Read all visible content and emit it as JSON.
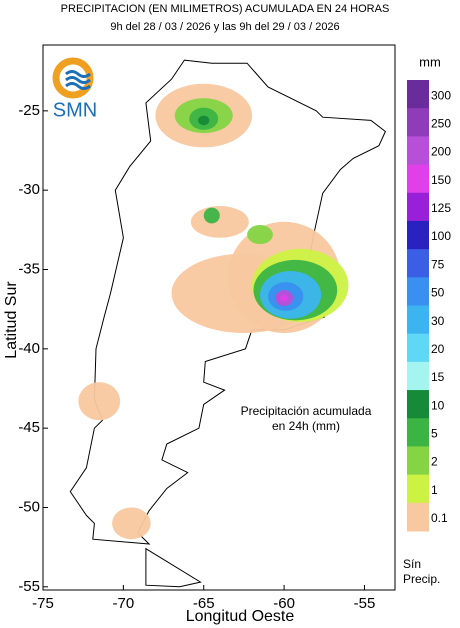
{
  "title": [
    "PRECIPITACION (EN MILIMETROS) ACUMULADA EN 24 HORAS",
    "9h del 28 / 03 / 2026  y las 9h del 29 / 03 / 2026"
  ],
  "logo": "SMN",
  "x_axis": {
    "label": "Longitud Oeste",
    "lim": [
      -75,
      -53.1
    ],
    "ticks": [
      -75,
      -70,
      -65,
      -60,
      -55
    ]
  },
  "y_axis": {
    "label": "Latitud Sur",
    "lim": [
      -55.2,
      -20.85
    ],
    "ticks": [
      -25,
      -30,
      -35,
      -40,
      -45,
      -50,
      -55
    ]
  },
  "annotation": [
    "Precipitación acumulada",
    "en 24h (mm)"
  ],
  "legend": {
    "unit": "mm",
    "levels": [
      {
        "value": 300,
        "color": "#6a2c9a"
      },
      {
        "value": 250,
        "color": "#8e3cb8"
      },
      {
        "value": 200,
        "color": "#b84fd8"
      },
      {
        "value": 150,
        "color": "#e040e8"
      },
      {
        "value": 125,
        "color": "#9820d8"
      },
      {
        "value": 100,
        "color": "#2a22c0"
      },
      {
        "value": 75,
        "color": "#3a5ee4"
      },
      {
        "value": 50,
        "color": "#3a90f0"
      },
      {
        "value": 30,
        "color": "#3cb4f0"
      },
      {
        "value": 20,
        "color": "#5ed8f4"
      },
      {
        "value": 15,
        "color": "#a4f4f0"
      },
      {
        "value": 10,
        "color": "#168a38"
      },
      {
        "value": 5,
        "color": "#3cb444"
      },
      {
        "value": 2,
        "color": "#84d444"
      },
      {
        "value": 1,
        "color": "#ccf244"
      },
      {
        "value": 0.1,
        "color": "#f8c8a0"
      }
    ],
    "no_data_label": [
      "Sín",
      "Precip."
    ]
  }
}
